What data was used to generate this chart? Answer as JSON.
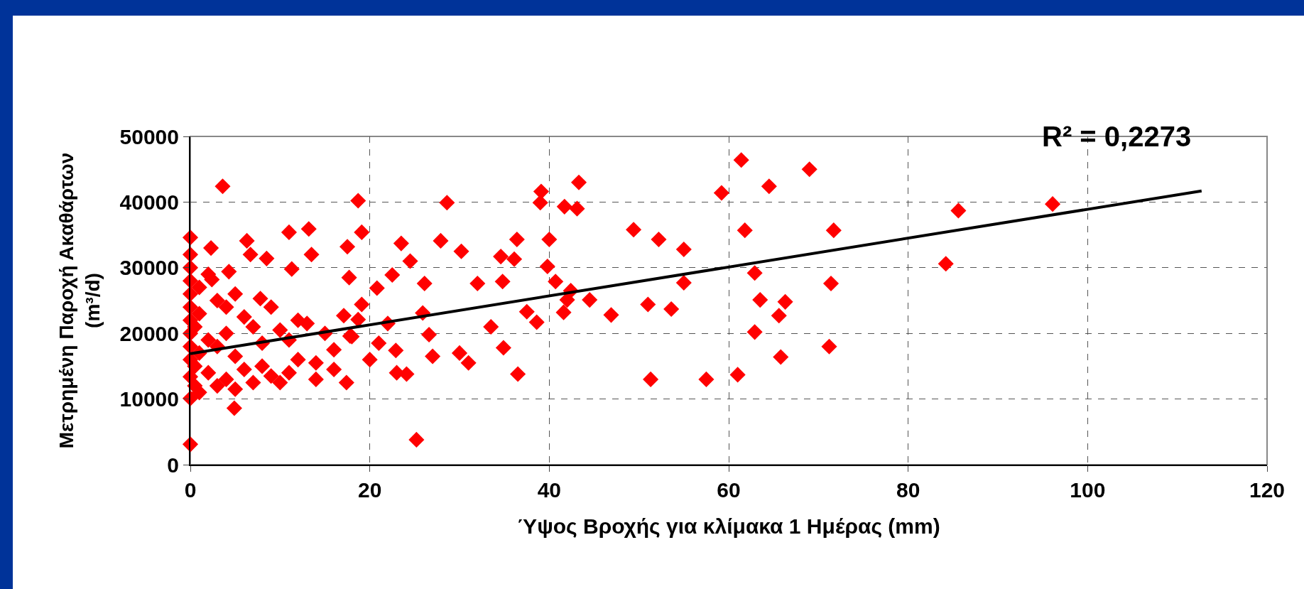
{
  "chart_data": {
    "type": "scatter",
    "xlabel": "Ύψος Βροχής για κλίμακα 1 Ημέρας (mm)",
    "ylabel": "Μετρημένη Παροχή Ακαθάρτων\n(m³/d)",
    "annotations": [
      "R² = 0,2273"
    ],
    "xlim": [
      0,
      120
    ],
    "xticks": [
      0,
      20,
      40,
      60,
      80,
      100,
      120
    ],
    "ylim": [
      0,
      50000
    ],
    "yticks": [
      0,
      10000,
      20000,
      30000,
      40000,
      50000
    ],
    "grid": true,
    "legend": false,
    "marker": "diamond",
    "series": [
      {
        "color": "#ff0000",
        "x": [
          61.4,
          69.0,
          64.5,
          59.2,
          85.6,
          96.1,
          84.2,
          61.8,
          71.7,
          62.9,
          52.2,
          49.4,
          55.0,
          55.0,
          71.4,
          63.5,
          51.0,
          53.6,
          62.9,
          71.2,
          46.9,
          44.5,
          42.4,
          51.3,
          57.5,
          61.0,
          65.8,
          65.6,
          66.3,
          39.1,
          39.0,
          43.3,
          43.1,
          41.7,
          40.0,
          39.8,
          40.7,
          42.0,
          41.6,
          38.6,
          37.5,
          36.5,
          36.4,
          36.1,
          34.6,
          34.8,
          34.9,
          33.5,
          32.0,
          30.2,
          28.6,
          27.9,
          26.1,
          25.9,
          25.2,
          26.6,
          24.1,
          23.5,
          24.5,
          22.5,
          22.9,
          20.8,
          19.1,
          18.7,
          18.7,
          19.1,
          17.5,
          17.7,
          17.1,
          17.8,
          17.4,
          3.6,
          0,
          0,
          0,
          0,
          0,
          2.3,
          6.3,
          11.0,
          13.2,
          11.3,
          13.5,
          4.9,
          2.4,
          6.7,
          7.8,
          8.5,
          4.3,
          0,
          0,
          0,
          0,
          0,
          0,
          0,
          0,
          0.5,
          0.5,
          0.5,
          1,
          1,
          1,
          1,
          2,
          2,
          2,
          3,
          3,
          3,
          4,
          4,
          4,
          5,
          5,
          5,
          6,
          6,
          7,
          7,
          8,
          8,
          9,
          9,
          10,
          10,
          11,
          11,
          12,
          12,
          13,
          14,
          14,
          15,
          16,
          16,
          18,
          20,
          21,
          22,
          23,
          27,
          30,
          31
        ],
        "values": [
          46400,
          45000,
          42400,
          41400,
          38700,
          39700,
          30600,
          35700,
          35700,
          29200,
          34300,
          35800,
          32800,
          27700,
          27600,
          25100,
          24400,
          23700,
          20200,
          18000,
          22800,
          25100,
          26500,
          13000,
          13000,
          13700,
          16400,
          22700,
          24800,
          41600,
          39900,
          43000,
          39000,
          39300,
          34300,
          30200,
          27900,
          25100,
          23200,
          21700,
          23300,
          13800,
          34300,
          31300,
          31700,
          27900,
          17800,
          21000,
          27600,
          32500,
          39900,
          34100,
          27600,
          23100,
          3800,
          19800,
          13800,
          33700,
          31000,
          28900,
          17400,
          26900,
          24400,
          22100,
          40200,
          35400,
          33200,
          28500,
          22700,
          19600,
          12500,
          42400,
          3100,
          34600,
          32000,
          13400,
          10100,
          33000,
          34100,
          35400,
          35900,
          29800,
          32000,
          8600,
          28200,
          32000,
          25300,
          31400,
          29400,
          30000,
          28000,
          26000,
          24000,
          22000,
          20000,
          18000,
          16000,
          12000,
          15000,
          21000,
          27000,
          11000,
          17000,
          23000,
          29000,
          14000,
          19000,
          25000,
          12000,
          18000,
          24000,
          13000,
          20000,
          26000,
          11500,
          16500,
          22500,
          14500,
          21000,
          12500,
          18500,
          15000,
          24000,
          13500,
          20500,
          12500,
          19000,
          14000,
          22000,
          16000,
          21500,
          15500,
          13000,
          20000,
          17500,
          14500,
          19500,
          16000,
          18500,
          21500,
          14000,
          16500,
          17000,
          15500
        ]
      },
      {
        "type": "line",
        "marker": "none",
        "color": "#000000",
        "x": [
          0,
          112.7
        ],
        "values": [
          16900,
          41700
        ]
      }
    ]
  }
}
